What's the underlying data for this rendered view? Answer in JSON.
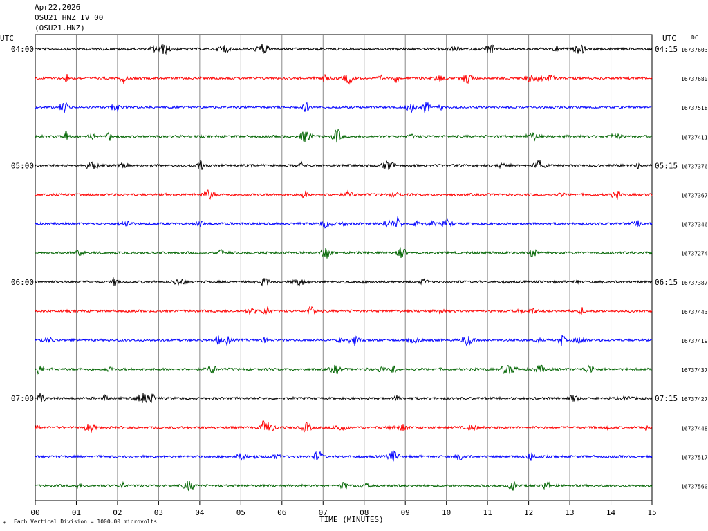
{
  "header": {
    "date": "Apr22,2026",
    "station": "OSU21 HNZ IV 00",
    "channel": "(OSU21.HNZ)"
  },
  "left_axis_label": "UTC",
  "right_axis_label": "UTC",
  "dc_label": "DC",
  "footer": {
    "scale_note": "Each Vertical Division = 1000.00 microvolts",
    "corner_mark": "*"
  },
  "chart_data": {
    "type": "line",
    "title": "",
    "xlabel": "TIME (MINUTES)",
    "ylabel": "",
    "xlim": [
      0,
      15
    ],
    "x_ticks": [
      "00",
      "01",
      "02",
      "03",
      "04",
      "05",
      "06",
      "07",
      "08",
      "09",
      "10",
      "11",
      "12",
      "13",
      "14",
      "15"
    ],
    "grid": "vertical lines every minute",
    "line_colors": [
      "#000000",
      "#ff0000",
      "#0000ff",
      "#006400"
    ],
    "series": [
      {
        "left_time": "04:00",
        "right_time": "04:15",
        "dc": "16737603",
        "color": "#000000"
      },
      {
        "left_time": "",
        "right_time": "",
        "dc": "16737680",
        "color": "#ff0000"
      },
      {
        "left_time": "",
        "right_time": "",
        "dc": "16737518",
        "color": "#0000ff"
      },
      {
        "left_time": "",
        "right_time": "",
        "dc": "16737411",
        "color": "#006400"
      },
      {
        "left_time": "05:00",
        "right_time": "05:15",
        "dc": "16737376",
        "color": "#000000"
      },
      {
        "left_time": "",
        "right_time": "",
        "dc": "16737367",
        "color": "#ff0000"
      },
      {
        "left_time": "",
        "right_time": "",
        "dc": "16737346",
        "color": "#0000ff"
      },
      {
        "left_time": "",
        "right_time": "",
        "dc": "16737274",
        "color": "#006400"
      },
      {
        "left_time": "06:00",
        "right_time": "06:15",
        "dc": "16737387",
        "color": "#000000"
      },
      {
        "left_time": "",
        "right_time": "",
        "dc": "16737443",
        "color": "#ff0000"
      },
      {
        "left_time": "",
        "right_time": "",
        "dc": "16737419",
        "color": "#0000ff"
      },
      {
        "left_time": "",
        "right_time": "",
        "dc": "16737437",
        "color": "#006400"
      },
      {
        "left_time": "07:00",
        "right_time": "07:15",
        "dc": "16737427",
        "color": "#000000"
      },
      {
        "left_time": "",
        "right_time": "",
        "dc": "16737448",
        "color": "#ff0000"
      },
      {
        "left_time": "",
        "right_time": "",
        "dc": "16737517",
        "color": "#0000ff"
      },
      {
        "left_time": "",
        "right_time": "",
        "dc": "16737560",
        "color": "#006400"
      }
    ]
  }
}
